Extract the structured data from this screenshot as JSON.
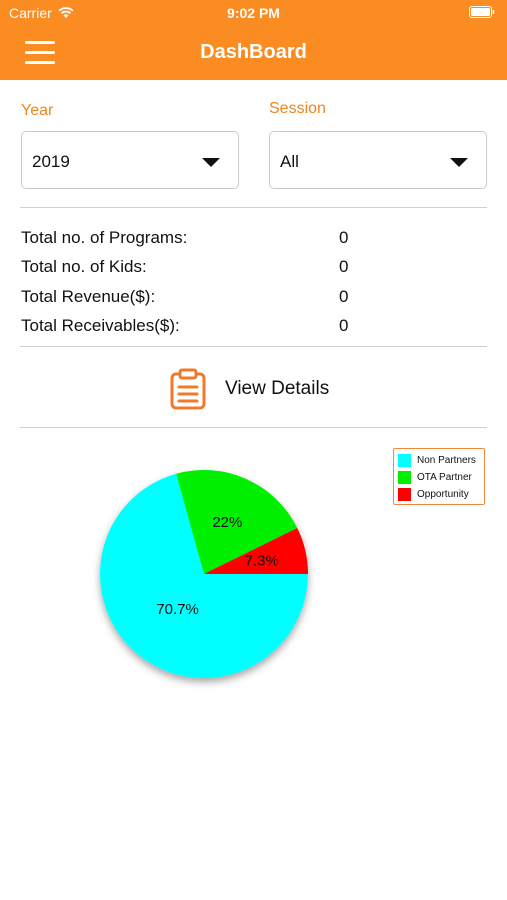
{
  "status_bar": {
    "carrier": "Carrier",
    "time": "9:02 PM"
  },
  "header": {
    "title": "DashBoard"
  },
  "filters": {
    "year": {
      "label": "Year",
      "value": "2019"
    },
    "session": {
      "label": "Session",
      "value": "All"
    }
  },
  "stats": [
    {
      "label": "Total no. of Programs:",
      "value": "0"
    },
    {
      "label": "Total no. of Kids:",
      "value": "0"
    },
    {
      "label": "Total Revenue($):",
      "value": "0"
    },
    {
      "label": "Total Receivables($):",
      "value": "0"
    }
  ],
  "view_details": {
    "label": "View Details",
    "icon": "clipboard-icon"
  },
  "colors": {
    "accent": "#fb8c22",
    "label_orange": "#f0841f"
  },
  "chart_data": {
    "type": "pie",
    "labels": [
      "Non Partners",
      "OTA Partner",
      "Opportunity"
    ],
    "values": [
      70.7,
      22,
      7.3
    ],
    "value_labels": [
      "70.7%",
      "22%",
      "7.3%"
    ],
    "colors": [
      "#00ffff",
      "#00f000",
      "#ff0000"
    ],
    "legend_position": "top-right"
  }
}
